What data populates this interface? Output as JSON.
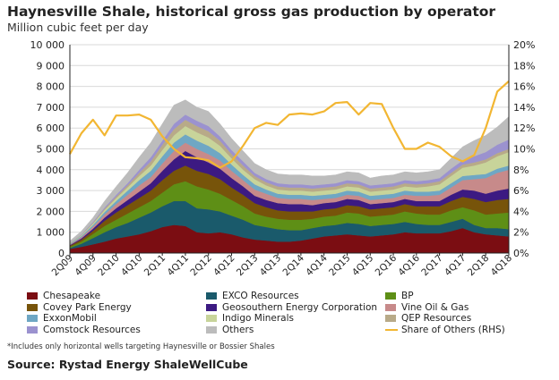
{
  "chart_data": {
    "type": "area",
    "title": "Haynesville Shale, historical gross gas production by operator",
    "subtitle": "Million cubic feet per day",
    "ylim": [
      0,
      10000
    ],
    "y2lim": [
      0,
      20
    ],
    "yticks": [
      "0",
      "1 000",
      "2 000",
      "3 000",
      "4 000",
      "5 000",
      "6 000",
      "7 000",
      "8 000",
      "9 000",
      "10 000"
    ],
    "y2ticks": [
      "0%",
      "2%",
      "4%",
      "6%",
      "8%",
      "10%",
      "12%",
      "14%",
      "16%",
      "18%",
      "20%"
    ],
    "x": [
      "2Q09",
      "3Q09",
      "4Q09",
      "1Q10",
      "2Q10",
      "3Q10",
      "4Q10",
      "1Q11",
      "2Q11",
      "3Q11",
      "4Q11",
      "1Q12",
      "2Q12",
      "3Q12",
      "4Q12",
      "1Q13",
      "2Q13",
      "3Q13",
      "4Q13",
      "1Q14",
      "2Q14",
      "3Q14",
      "4Q14",
      "1Q15",
      "2Q15",
      "3Q15",
      "4Q15",
      "1Q16",
      "2Q16",
      "3Q16",
      "4Q16",
      "1Q17",
      "2Q17",
      "3Q17",
      "4Q17",
      "1Q18",
      "2Q18",
      "3Q18",
      "4Q18"
    ],
    "xtick_labels": [
      "2Q09",
      "4Q09",
      "2Q10",
      "4Q10",
      "2Q11",
      "4Q11",
      "2Q12",
      "4Q12",
      "2Q13",
      "4Q13",
      "2Q14",
      "4Q14",
      "2Q15",
      "4Q15",
      "2Q16",
      "4Q16",
      "2Q17",
      "4Q17",
      "2Q18",
      "4Q18"
    ],
    "series": [
      {
        "name": "Chesapeake",
        "color": "#7b0d12",
        "values": [
          200,
          300,
          420,
          550,
          700,
          800,
          900,
          1050,
          1250,
          1350,
          1300,
          1000,
          950,
          1000,
          900,
          750,
          650,
          600,
          550,
          550,
          600,
          700,
          800,
          850,
          900,
          850,
          800,
          850,
          900,
          1000,
          950,
          950,
          950,
          1050,
          1200,
          1000,
          900,
          850,
          800
        ]
      },
      {
        "name": "EXCO Resources",
        "color": "#1a5a6b",
        "values": [
          50,
          150,
          300,
          450,
          550,
          650,
          800,
          900,
          1000,
          1150,
          1200,
          1150,
          1150,
          1000,
          900,
          850,
          700,
          650,
          600,
          550,
          500,
          500,
          500,
          500,
          550,
          550,
          500,
          500,
          500,
          500,
          450,
          400,
          400,
          450,
          450,
          350,
          300,
          350,
          350
        ]
      },
      {
        "name": "BP",
        "color": "#5e8f16",
        "values": [
          50,
          100,
          200,
          300,
          350,
          450,
          500,
          550,
          650,
          800,
          950,
          1050,
          950,
          850,
          750,
          650,
          550,
          500,
          500,
          500,
          500,
          450,
          450,
          450,
          500,
          500,
          450,
          450,
          450,
          500,
          500,
          500,
          500,
          550,
          550,
          700,
          650,
          700,
          800
        ]
      },
      {
        "name": "Covey Park Energy",
        "color": "#77540a",
        "values": [
          50,
          100,
          150,
          250,
          350,
          400,
          450,
          500,
          600,
          650,
          750,
          750,
          750,
          700,
          600,
          550,
          500,
          450,
          400,
          400,
          400,
          350,
          350,
          350,
          350,
          350,
          350,
          350,
          350,
          350,
          350,
          400,
          400,
          450,
          500,
          550,
          600,
          650,
          650
        ]
      },
      {
        "name": "Geosouthern Energy Corporation",
        "color": "#3c1a82",
        "values": [
          30,
          60,
          100,
          150,
          200,
          250,
          300,
          350,
          450,
          550,
          700,
          650,
          550,
          500,
          450,
          400,
          350,
          350,
          350,
          350,
          350,
          300,
          300,
          300,
          300,
          300,
          250,
          250,
          250,
          250,
          250,
          250,
          250,
          300,
          350,
          400,
          400,
          450,
          500
        ]
      },
      {
        "name": "Vine Oil & Gas",
        "color": "#c78a8a",
        "values": [
          30,
          60,
          100,
          150,
          200,
          250,
          300,
          300,
          350,
          400,
          400,
          400,
          400,
          400,
          350,
          300,
          300,
          300,
          250,
          250,
          250,
          250,
          200,
          200,
          200,
          200,
          200,
          200,
          200,
          200,
          250,
          250,
          300,
          350,
          450,
          550,
          750,
          850,
          900
        ]
      },
      {
        "name": "ExxonMobil",
        "color": "#6fa7c4",
        "values": [
          30,
          50,
          80,
          120,
          150,
          200,
          250,
          300,
          350,
          400,
          400,
          400,
          400,
          350,
          300,
          250,
          250,
          200,
          200,
          200,
          200,
          200,
          200,
          200,
          200,
          200,
          200,
          200,
          200,
          200,
          200,
          200,
          200,
          200,
          200,
          200,
          200,
          200,
          200
        ]
      },
      {
        "name": "Indigo Minerals",
        "color": "#c8d49a",
        "values": [
          20,
          40,
          70,
          100,
          130,
          160,
          200,
          250,
          300,
          350,
          400,
          400,
          400,
          350,
          300,
          250,
          250,
          200,
          200,
          200,
          200,
          200,
          200,
          200,
          200,
          200,
          200,
          200,
          200,
          200,
          200,
          250,
          300,
          350,
          400,
          450,
          550,
          600,
          650
        ]
      },
      {
        "name": "QEP Resources",
        "color": "#b8aa88",
        "values": [
          10,
          20,
          40,
          60,
          80,
          100,
          150,
          200,
          250,
          300,
          300,
          300,
          300,
          250,
          200,
          200,
          150,
          150,
          150,
          150,
          150,
          150,
          150,
          150,
          150,
          150,
          150,
          150,
          150,
          150,
          150,
          150,
          150,
          150,
          150,
          150,
          150,
          150,
          150
        ]
      },
      {
        "name": "Comstock Resources",
        "color": "#9b92cf",
        "values": [
          10,
          20,
          40,
          60,
          80,
          100,
          150,
          200,
          200,
          250,
          250,
          250,
          250,
          200,
          200,
          200,
          150,
          150,
          150,
          150,
          150,
          150,
          150,
          150,
          150,
          150,
          150,
          150,
          150,
          150,
          150,
          150,
          150,
          200,
          200,
          300,
          350,
          400,
          450
        ]
      },
      {
        "name": "Others",
        "color": "#bcbcbc",
        "values": [
          100,
          150,
          200,
          300,
          400,
          500,
          600,
          700,
          800,
          900,
          700,
          650,
          700,
          600,
          550,
          500,
          450,
          450,
          450,
          450,
          450,
          450,
          400,
          400,
          400,
          400,
          350,
          400,
          400,
          400,
          400,
          400,
          400,
          500,
          650,
          750,
          800,
          850,
          1100
        ]
      }
    ],
    "line_series": {
      "name": "Share of Others (RHS)",
      "color": "#f2b632",
      "axis": "right",
      "values": [
        9.5,
        11.5,
        12.8,
        11.3,
        13.2,
        13.2,
        13.3,
        12.8,
        11.2,
        10.0,
        9.2,
        9.1,
        8.9,
        8.2,
        8.8,
        10.3,
        12.0,
        12.5,
        12.3,
        13.3,
        13.4,
        13.3,
        13.6,
        14.4,
        14.5,
        13.3,
        14.4,
        14.3,
        12.0,
        10.0,
        10.0,
        10.6,
        10.2,
        9.3,
        8.8,
        9.4,
        12.0,
        15.5,
        16.5
      ]
    },
    "legend": {
      "position": "bottom",
      "columns": 3
    }
  },
  "footnote": "*Includes only horizontal wells targeting Haynesville or Bossier Shales",
  "source": "Source: Rystad Energy ShaleWellCube"
}
